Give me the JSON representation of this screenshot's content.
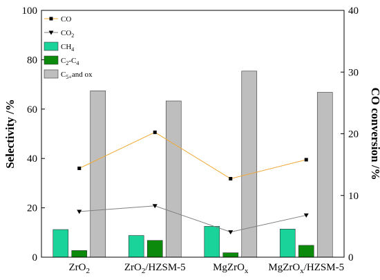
{
  "chart_data": {
    "type": "bar+line",
    "categories": [
      {
        "main": "ZrO",
        "sub": "2",
        "rest": ""
      },
      {
        "main": "ZrO",
        "sub": "2",
        "rest": "/HZSM-5"
      },
      {
        "main": "MgZrO",
        "sub": "x",
        "rest": ""
      },
      {
        "main": "MgZrO",
        "sub": "x",
        "rest": "/HZSM-5"
      }
    ],
    "bar_series": [
      {
        "key": "ch4",
        "color": "#1ad39a",
        "values": [
          11.2,
          8.8,
          12.5,
          11.4
        ]
      },
      {
        "key": "c2c4",
        "color": "#0b8a0b",
        "values": [
          2.7,
          6.8,
          1.8,
          4.8
        ]
      },
      {
        "key": "c5ox",
        "color": "#bebebe",
        "values": [
          67.4,
          63.3,
          75.4,
          66.8
        ]
      }
    ],
    "line_series": [
      {
        "key": "co",
        "color": "#f0a830",
        "marker": "square",
        "axis": "left",
        "values": [
          36.0,
          50.6,
          31.8,
          39.5
        ]
      },
      {
        "key": "co2",
        "color": "#7f7f7f",
        "marker": "triangle-down",
        "axis": "left",
        "values": [
          18.5,
          20.8,
          10.2,
          17.0
        ]
      }
    ],
    "legend": [
      {
        "key": "co",
        "kind": "line",
        "color": "#f0a830",
        "marker": "square",
        "label": "CO",
        "sub": "",
        "tail": ""
      },
      {
        "key": "co2",
        "kind": "line",
        "color": "#7f7f7f",
        "marker": "triangle-down",
        "label": "CO",
        "sub": "2",
        "tail": ""
      },
      {
        "key": "ch4",
        "kind": "bar",
        "color": "#1ad39a",
        "label": "CH",
        "sub": "4",
        "tail": ""
      },
      {
        "key": "c2c4",
        "kind": "bar",
        "color": "#0b8a0b",
        "label": "C",
        "sub": "2",
        "tail": "-C",
        "sub2": "4"
      },
      {
        "key": "c5ox",
        "kind": "bar",
        "color": "#bebebe",
        "label": "C",
        "sub": "5+",
        "tail": "and ox"
      }
    ],
    "y_left": {
      "label": "Selectivity /%",
      "ylim": [
        0,
        100
      ],
      "ticks": [
        0,
        20,
        40,
        60,
        80,
        100
      ]
    },
    "y_right": {
      "label": "CO conversion /%",
      "ylim": [
        0,
        40
      ],
      "ticks": [
        0,
        10,
        20,
        30,
        40
      ]
    },
    "legend_position": "top-left",
    "grid": false
  }
}
